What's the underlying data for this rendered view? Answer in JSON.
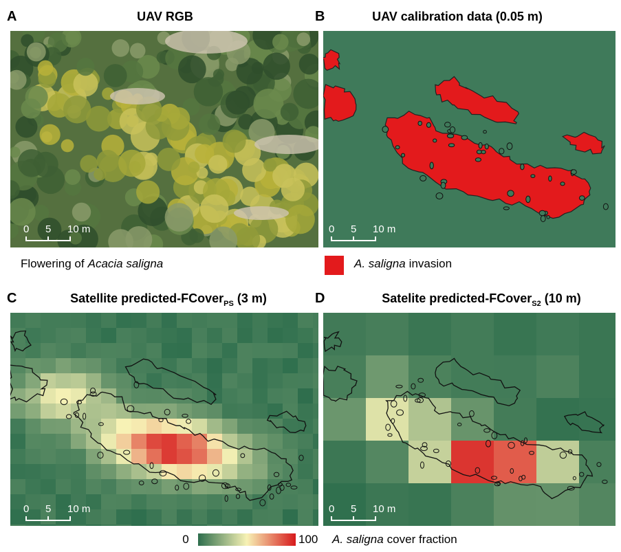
{
  "panels": [
    {
      "letter": "A",
      "title": "UAV RGB",
      "scale_labels": [
        "0",
        "5",
        "10 m"
      ]
    },
    {
      "letter": "B",
      "title": "UAV calibration data (0.05 m)",
      "scale_labels": [
        "0",
        "5",
        "10 m"
      ]
    },
    {
      "letter": "C",
      "title": "Satellite predicted-FCover",
      "title_sub": "PS",
      "title_suffix": "(3 m)",
      "scale_labels": [
        "0",
        "5",
        "10 m"
      ]
    },
    {
      "letter": "D",
      "title": "Satelite predicted-FCover",
      "title_sub": "S2",
      "title_suffix": "(10 m)",
      "scale_labels": [
        "0",
        "5",
        "10 m"
      ]
    }
  ],
  "captions": {
    "a_prefix": "Flowering of",
    "a_italic": "Acacia saligna",
    "b_italic": "A. saligna",
    "b_suffix": "invasion"
  },
  "colorbar": {
    "min_label": 0,
    "max_label": 100,
    "label_italic": "A. saligna",
    "label_suffix": "cover fraction"
  }
}
